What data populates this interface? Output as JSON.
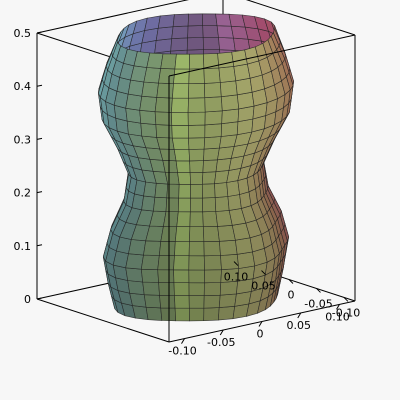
{
  "chart_data": {
    "type": "surface3d",
    "title": "",
    "xlabel": "",
    "ylabel": "",
    "zlabel": "",
    "xlim": [
      -0.12,
      0.12
    ],
    "ylim": [
      -0.12,
      0.12
    ],
    "zlim": [
      0,
      0.5
    ],
    "x_ticks": [
      "-0.10",
      "-0.05",
      "0",
      "0.05",
      "0.10"
    ],
    "y_ticks": [
      "0.10",
      "0.05",
      "0",
      "-0.05",
      "-0.10"
    ],
    "z_ticks": [
      "0",
      "0.1",
      "0.2",
      "0.3",
      "0.4",
      "0.5"
    ],
    "box": true,
    "grid": false,
    "surface": {
      "shape": "wavy vase (surface of revolution with lobes)",
      "z_range": [
        0,
        0.5
      ],
      "radius_samples": [
        {
          "z": 0.0,
          "r": 0.088
        },
        {
          "z": 0.05,
          "r": 0.095
        },
        {
          "z": 0.1,
          "r": 0.1
        },
        {
          "z": 0.15,
          "r": 0.092
        },
        {
          "z": 0.2,
          "r": 0.078
        },
        {
          "z": 0.25,
          "r": 0.073
        },
        {
          "z": 0.3,
          "r": 0.085
        },
        {
          "z": 0.35,
          "r": 0.1
        },
        {
          "z": 0.4,
          "r": 0.104
        },
        {
          "z": 0.45,
          "r": 0.096
        },
        {
          "z": 0.5,
          "r": 0.085
        }
      ],
      "angular_lobes": 4,
      "colors": [
        "#e85a8a",
        "#d08be0",
        "#8a8fe0",
        "#7fcfd8",
        "#6fa0a0",
        "#bde07a",
        "#f0f090",
        "#e8a070"
      ]
    }
  }
}
